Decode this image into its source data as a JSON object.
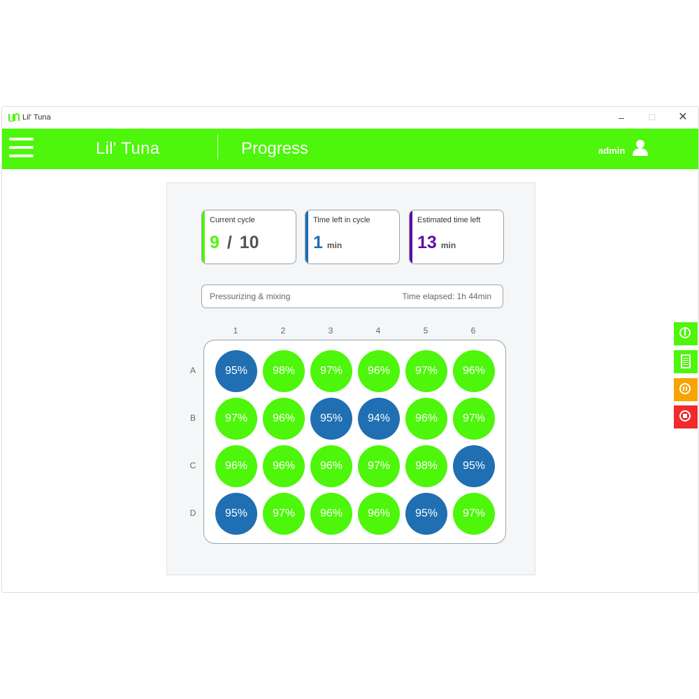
{
  "window": {
    "title": "Lil' Tuna",
    "controls": [
      "–",
      "☐",
      "✕"
    ]
  },
  "navbar": {
    "brand": "Lil' Tuna",
    "page_title": "Progress",
    "user": "admin"
  },
  "cards": [
    {
      "label": "Current cycle",
      "value": "9",
      "total": "10",
      "accent": "#4df60a"
    },
    {
      "label": "Time left in cycle",
      "value": "1",
      "unit": "min",
      "accent": "#1f6fb2"
    },
    {
      "label": "Estimated time left",
      "value": "13",
      "unit": "min",
      "accent": "#5c0fa0"
    }
  ],
  "status": {
    "stage": "Pressurizing & mixing",
    "elapsed": "Time elapsed: 1h 44min"
  },
  "plate": {
    "columns": [
      "1",
      "2",
      "3",
      "4",
      "5",
      "6"
    ],
    "rows": [
      "A",
      "B",
      "C",
      "D"
    ],
    "wells": [
      [
        {
          "v": "95%",
          "s": "blue"
        },
        {
          "v": "98%",
          "s": "green"
        },
        {
          "v": "97%",
          "s": "green"
        },
        {
          "v": "96%",
          "s": "green"
        },
        {
          "v": "97%",
          "s": "green"
        },
        {
          "v": "96%",
          "s": "green"
        }
      ],
      [
        {
          "v": "97%",
          "s": "green"
        },
        {
          "v": "96%",
          "s": "green"
        },
        {
          "v": "95%",
          "s": "blue"
        },
        {
          "v": "94%",
          "s": "blue"
        },
        {
          "v": "96%",
          "s": "green"
        },
        {
          "v": "97%",
          "s": "green"
        }
      ],
      [
        {
          "v": "96%",
          "s": "green"
        },
        {
          "v": "96%",
          "s": "green"
        },
        {
          "v": "96%",
          "s": "green"
        },
        {
          "v": "97%",
          "s": "green"
        },
        {
          "v": "98%",
          "s": "green"
        },
        {
          "v": "95%",
          "s": "blue"
        }
      ],
      [
        {
          "v": "95%",
          "s": "blue"
        },
        {
          "v": "97%",
          "s": "green"
        },
        {
          "v": "96%",
          "s": "green"
        },
        {
          "v": "96%",
          "s": "green"
        },
        {
          "v": "95%",
          "s": "blue"
        },
        {
          "v": "97%",
          "s": "green"
        }
      ]
    ]
  },
  "colors": {
    "green": "#4df60a",
    "blue": "#1f6fb2",
    "pause": "#f7a400",
    "stop": "#ef2b2b"
  },
  "side_buttons": [
    {
      "name": "info-button",
      "icon": "info-icon",
      "color": "#4df60a"
    },
    {
      "name": "log-button",
      "icon": "list-icon",
      "color": "#4df60a"
    },
    {
      "name": "pause-button",
      "icon": "pause-icon",
      "color": "#f7a400"
    },
    {
      "name": "stop-button",
      "icon": "stop-icon",
      "color": "#ef2b2b"
    }
  ]
}
